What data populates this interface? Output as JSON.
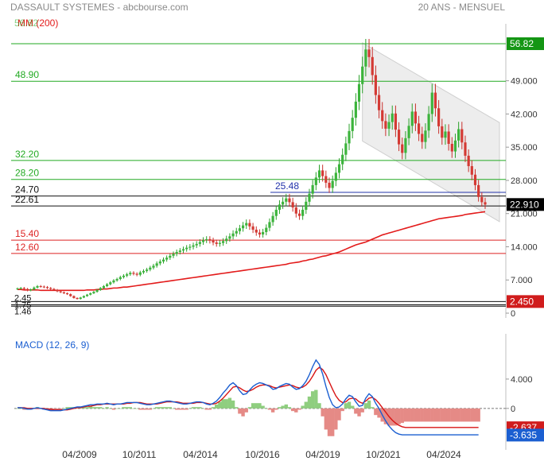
{
  "header": {
    "title": "DASSAULT SYSTEMES - abcbourse.com",
    "period": "20 ANS - MENSUEL"
  },
  "chart_data": [
    {
      "type": "candlestick",
      "ma_label": "MM (200)",
      "ylim": [
        0,
        60
      ],
      "yticks": [
        "49.000",
        "42.000",
        "35.000",
        "28.000",
        "21.000",
        "14.000",
        "7.000",
        "0"
      ],
      "ytick_values": [
        49,
        42,
        35,
        28,
        21,
        14,
        7,
        0
      ],
      "last_price": "22.910",
      "last_value": 22.91,
      "xticks": [
        "04/2009",
        "10/2011",
        "04/2014",
        "10/2016",
        "04/2019",
        "10/2021",
        "04/2024"
      ],
      "levels": [
        {
          "label": "56.82",
          "value": 56.82,
          "color": "#22aa22",
          "right_badge": "56.82"
        },
        {
          "label": "48.90",
          "value": 48.9,
          "color": "#22aa22"
        },
        {
          "label": "32.20",
          "value": 32.2,
          "color": "#22aa22"
        },
        {
          "label": "28.20",
          "value": 28.2,
          "color": "#22aa22"
        },
        {
          "label": "25.48",
          "value": 25.48,
          "color": "#2233aa"
        },
        {
          "label": "24.70",
          "value": 24.7,
          "color": "#111111"
        },
        {
          "label": "22.61",
          "value": 22.61,
          "color": "#111111"
        },
        {
          "label": "15.40",
          "value": 15.4,
          "color": "#dd2222"
        },
        {
          "label": "12.60",
          "value": 12.6,
          "color": "#dd2222"
        },
        {
          "label": "2.45",
          "value": 2.45,
          "color": "#111111",
          "right_badge": "2.450"
        },
        {
          "label": "1.75",
          "value": 1.75,
          "color": "#111111"
        },
        {
          "label": "1.46",
          "value": 1.46,
          "color": "#111111"
        }
      ],
      "ma200_value_end": 21.5,
      "closes": [
        5.2,
        5.3,
        5.1,
        4.8,
        5.0,
        5.4,
        5.7,
        5.6,
        5.5,
        5.3,
        5.1,
        4.9,
        4.6,
        4.4,
        4.2,
        4.0,
        3.6,
        3.2,
        3.0,
        3.3,
        3.6,
        3.9,
        4.2,
        4.5,
        4.9,
        5.3,
        5.7,
        6.1,
        6.5,
        6.9,
        7.2,
        7.6,
        7.9,
        8.2,
        8.5,
        8.3,
        8.1,
        8.6,
        8.9,
        9.2,
        9.6,
        10.0,
        10.5,
        10.9,
        11.3,
        11.7,
        12.1,
        12.5,
        12.9,
        13.2,
        13.5,
        13.8,
        14.0,
        14.3,
        14.6,
        15.0,
        15.4,
        15.6,
        15.3,
        14.9,
        14.6,
        14.8,
        15.2,
        15.7,
        16.2,
        16.8,
        17.3,
        17.9,
        18.5,
        19.0,
        18.3,
        17.6,
        17.0,
        16.6,
        17.1,
        18.0,
        19.2,
        20.5,
        21.8,
        22.9,
        23.5,
        24.2,
        23.4,
        22.3,
        21.0,
        20.5,
        21.8,
        23.5,
        25.2,
        27.0,
        28.6,
        30.1,
        28.9,
        27.5,
        26.4,
        27.9,
        29.6,
        31.4,
        33.4,
        35.8,
        38.4,
        41.2,
        44.6,
        48.3,
        52.0,
        55.6,
        54.0,
        50.2,
        46.0,
        42.8,
        40.5,
        38.9,
        40.3,
        42.1,
        38.7,
        35.6,
        33.8,
        36.9,
        39.5,
        42.5,
        40.0,
        37.8,
        36.1,
        38.5,
        42.0,
        46.5,
        43.2,
        39.4,
        37.0,
        38.3,
        35.7,
        34.1,
        36.4,
        38.8,
        36.0,
        33.2,
        31.0,
        29.2,
        27.0,
        24.5,
        23.4,
        22.9
      ],
      "ma200": [
        5.0,
        5.0,
        4.9,
        4.9,
        4.9,
        4.9,
        4.9,
        4.8,
        4.8,
        4.8,
        4.8,
        4.8,
        4.8,
        4.8,
        4.8,
        4.8,
        4.8,
        4.8,
        4.8,
        4.8,
        4.8,
        4.9,
        4.9,
        4.9,
        5.0,
        5.0,
        5.1,
        5.1,
        5.2,
        5.3,
        5.3,
        5.4,
        5.5,
        5.5,
        5.6,
        5.7,
        5.8,
        5.9,
        6.0,
        6.1,
        6.2,
        6.3,
        6.4,
        6.5,
        6.6,
        6.7,
        6.8,
        6.9,
        7.0,
        7.1,
        7.2,
        7.3,
        7.4,
        7.5,
        7.6,
        7.7,
        7.8,
        7.9,
        8.0,
        8.1,
        8.2,
        8.3,
        8.4,
        8.5,
        8.6,
        8.7,
        8.8,
        8.9,
        9.0,
        9.1,
        9.2,
        9.3,
        9.4,
        9.5,
        9.6,
        9.7,
        9.8,
        9.9,
        10.0,
        10.1,
        10.2,
        10.3,
        10.5,
        10.6,
        10.7,
        10.8,
        11.0,
        11.1,
        11.3,
        11.4,
        11.6,
        11.8,
        12.0,
        12.1,
        12.3,
        12.5,
        12.7,
        12.9,
        13.2,
        13.5,
        13.8,
        14.1,
        14.4,
        14.6,
        14.8,
        15.0,
        15.3,
        15.6,
        15.9,
        16.2,
        16.5,
        16.7,
        16.9,
        17.1,
        17.3,
        17.5,
        17.7,
        17.9,
        18.1,
        18.3,
        18.5,
        18.7,
        18.9,
        19.1,
        19.3,
        19.5,
        19.7,
        19.9,
        20.0,
        20.1,
        20.2,
        20.3,
        20.4,
        20.5,
        20.6,
        20.8,
        20.9,
        21.0,
        21.1,
        21.2,
        21.3,
        21.4
      ]
    },
    {
      "type": "line",
      "title": "MACD (12, 26, 9)",
      "ylim": [
        -5,
        8
      ],
      "yticks": [
        "4.000",
        "0"
      ],
      "ytick_values": [
        4,
        0
      ],
      "last_signal": "-2.637",
      "last_macd": "-3.635",
      "signal_end_value": -2.637,
      "macd_end_value": -3.635,
      "macd": [
        0.1,
        0.1,
        0.0,
        -0.1,
        -0.1,
        0.0,
        0.1,
        0.0,
        -0.1,
        -0.2,
        -0.3,
        -0.3,
        -0.3,
        -0.3,
        -0.2,
        -0.1,
        0.0,
        0.1,
        0.2,
        0.2,
        0.3,
        0.4,
        0.5,
        0.5,
        0.6,
        0.6,
        0.6,
        0.7,
        0.6,
        0.5,
        0.6,
        0.6,
        0.7,
        0.8,
        0.8,
        0.8,
        0.8,
        0.7,
        0.6,
        0.5,
        0.5,
        0.6,
        0.7,
        0.8,
        0.9,
        1.0,
        1.0,
        0.9,
        0.8,
        0.7,
        0.6,
        0.6,
        0.7,
        0.8,
        0.9,
        0.9,
        0.8,
        0.6,
        0.5,
        0.7,
        1.0,
        1.5,
        2.1,
        2.6,
        3.2,
        3.5,
        3.1,
        2.4,
        1.9,
        2.0,
        2.5,
        3.0,
        3.3,
        3.5,
        3.4,
        3.2,
        3.0,
        2.6,
        2.7,
        3.0,
        3.2,
        3.4,
        3.3,
        2.9,
        2.6,
        2.7,
        3.1,
        3.7,
        4.6,
        5.7,
        6.6,
        6.0,
        4.7,
        3.0,
        1.5,
        0.5,
        0.1,
        0.2,
        0.6,
        1.3,
        1.8,
        1.6,
        0.9,
        0.3,
        0.4,
        1.4,
        2.0,
        1.6,
        0.7,
        0.0,
        -0.9,
        -1.7,
        -2.4,
        -2.9,
        -3.3,
        -3.5,
        -3.6,
        -3.6,
        -3.6,
        -3.6,
        -3.6,
        -3.6,
        -3.6,
        -3.6,
        -3.6,
        -3.6,
        -3.6,
        -3.6,
        -3.6,
        -3.6,
        -3.6,
        -3.6,
        -3.6,
        -3.6,
        -3.6,
        -3.6,
        -3.6,
        -3.6,
        -3.6,
        -3.6
      ],
      "signal": [
        0.1,
        0.1,
        0.1,
        0.0,
        0.0,
        0.0,
        0.0,
        0.0,
        0.0,
        -0.1,
        -0.1,
        -0.2,
        -0.2,
        -0.2,
        -0.2,
        -0.2,
        -0.1,
        0.0,
        0.1,
        0.1,
        0.2,
        0.3,
        0.3,
        0.4,
        0.5,
        0.5,
        0.6,
        0.6,
        0.6,
        0.6,
        0.6,
        0.6,
        0.6,
        0.7,
        0.7,
        0.8,
        0.8,
        0.8,
        0.7,
        0.6,
        0.6,
        0.6,
        0.6,
        0.7,
        0.8,
        0.9,
        0.9,
        0.9,
        0.9,
        0.8,
        0.7,
        0.7,
        0.7,
        0.7,
        0.8,
        0.8,
        0.8,
        0.7,
        0.6,
        0.6,
        0.7,
        1.0,
        1.4,
        1.9,
        2.4,
        2.9,
        3.0,
        2.8,
        2.5,
        2.3,
        2.4,
        2.6,
        2.9,
        3.1,
        3.2,
        3.2,
        3.1,
        2.9,
        2.8,
        2.9,
        3.0,
        3.1,
        3.2,
        3.1,
        2.9,
        2.8,
        2.9,
        3.2,
        3.7,
        4.4,
        5.2,
        5.6,
        5.3,
        4.6,
        3.6,
        2.6,
        1.7,
        1.1,
        0.8,
        0.9,
        1.3,
        1.4,
        1.3,
        0.9,
        0.7,
        1.0,
        1.4,
        1.5,
        1.2,
        0.7,
        0.1,
        -0.5,
        -1.1,
        -1.6,
        -2.0,
        -2.3,
        -2.5,
        -2.6,
        -2.6,
        -2.6,
        -2.6,
        -2.6,
        -2.6,
        -2.6,
        -2.6,
        -2.6,
        -2.6,
        -2.6,
        -2.6,
        -2.6,
        -2.6,
        -2.6,
        -2.6,
        -2.6,
        -2.6,
        -2.6,
        -2.6,
        -2.6,
        -2.6,
        -2.6
      ]
    }
  ]
}
